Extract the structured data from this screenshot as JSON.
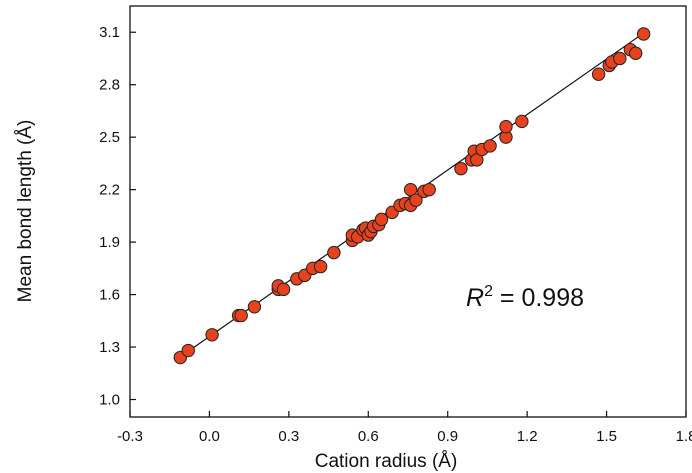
{
  "chart_data": {
    "type": "scatter",
    "xlabel": "Cation radius (Å)",
    "ylabel": "Mean bond length (Å)",
    "xlim": [
      -0.3,
      1.8
    ],
    "ylim": [
      0.9,
      3.25
    ],
    "x_ticks": [
      "-0.3",
      "0.0",
      "0.3",
      "0.6",
      "0.9",
      "1.2",
      "1.5",
      "1.8"
    ],
    "y_ticks": [
      "1.0",
      "1.3",
      "1.6",
      "1.9",
      "2.2",
      "2.5",
      "2.8",
      "3.1"
    ],
    "annotation": {
      "symbol": "R",
      "superscript": "2",
      "text": " = 0.998"
    },
    "grid": false,
    "marker_color": "#e8411e",
    "marker_edge_color": "#222222",
    "fit_line": {
      "x": [
        -0.11,
        1.64
      ],
      "y": [
        1.244,
        3.095
      ]
    },
    "points": [
      {
        "x": -0.11,
        "y": 1.24
      },
      {
        "x": -0.08,
        "y": 1.28
      },
      {
        "x": 0.01,
        "y": 1.37
      },
      {
        "x": 0.11,
        "y": 1.48
      },
      {
        "x": 0.12,
        "y": 1.48
      },
      {
        "x": 0.17,
        "y": 1.53
      },
      {
        "x": 0.26,
        "y": 1.63
      },
      {
        "x": 0.26,
        "y": 1.65
      },
      {
        "x": 0.28,
        "y": 1.63
      },
      {
        "x": 0.33,
        "y": 1.69
      },
      {
        "x": 0.36,
        "y": 1.71
      },
      {
        "x": 0.39,
        "y": 1.75
      },
      {
        "x": 0.42,
        "y": 1.76
      },
      {
        "x": 0.47,
        "y": 1.84
      },
      {
        "x": 0.54,
        "y": 1.91
      },
      {
        "x": 0.54,
        "y": 1.94
      },
      {
        "x": 0.56,
        "y": 1.93
      },
      {
        "x": 0.58,
        "y": 1.97
      },
      {
        "x": 0.59,
        "y": 1.98
      },
      {
        "x": 0.6,
        "y": 1.94
      },
      {
        "x": 0.61,
        "y": 1.96
      },
      {
        "x": 0.62,
        "y": 1.99
      },
      {
        "x": 0.64,
        "y": 2.0
      },
      {
        "x": 0.65,
        "y": 2.03
      },
      {
        "x": 0.69,
        "y": 2.07
      },
      {
        "x": 0.72,
        "y": 2.11
      },
      {
        "x": 0.74,
        "y": 2.12
      },
      {
        "x": 0.76,
        "y": 2.2
      },
      {
        "x": 0.76,
        "y": 2.11
      },
      {
        "x": 0.78,
        "y": 2.14
      },
      {
        "x": 0.81,
        "y": 2.19
      },
      {
        "x": 0.83,
        "y": 2.2
      },
      {
        "x": 0.95,
        "y": 2.32
      },
      {
        "x": 0.99,
        "y": 2.37
      },
      {
        "x": 1.0,
        "y": 2.42
      },
      {
        "x": 1.01,
        "y": 2.37
      },
      {
        "x": 1.03,
        "y": 2.43
      },
      {
        "x": 1.06,
        "y": 2.45
      },
      {
        "x": 1.12,
        "y": 2.5
      },
      {
        "x": 1.12,
        "y": 2.56
      },
      {
        "x": 1.18,
        "y": 2.59
      },
      {
        "x": 1.47,
        "y": 2.86
      },
      {
        "x": 1.51,
        "y": 2.91
      },
      {
        "x": 1.52,
        "y": 2.93
      },
      {
        "x": 1.55,
        "y": 2.95
      },
      {
        "x": 1.59,
        "y": 3.0
      },
      {
        "x": 1.61,
        "y": 2.98
      },
      {
        "x": 1.64,
        "y": 3.09
      }
    ]
  }
}
